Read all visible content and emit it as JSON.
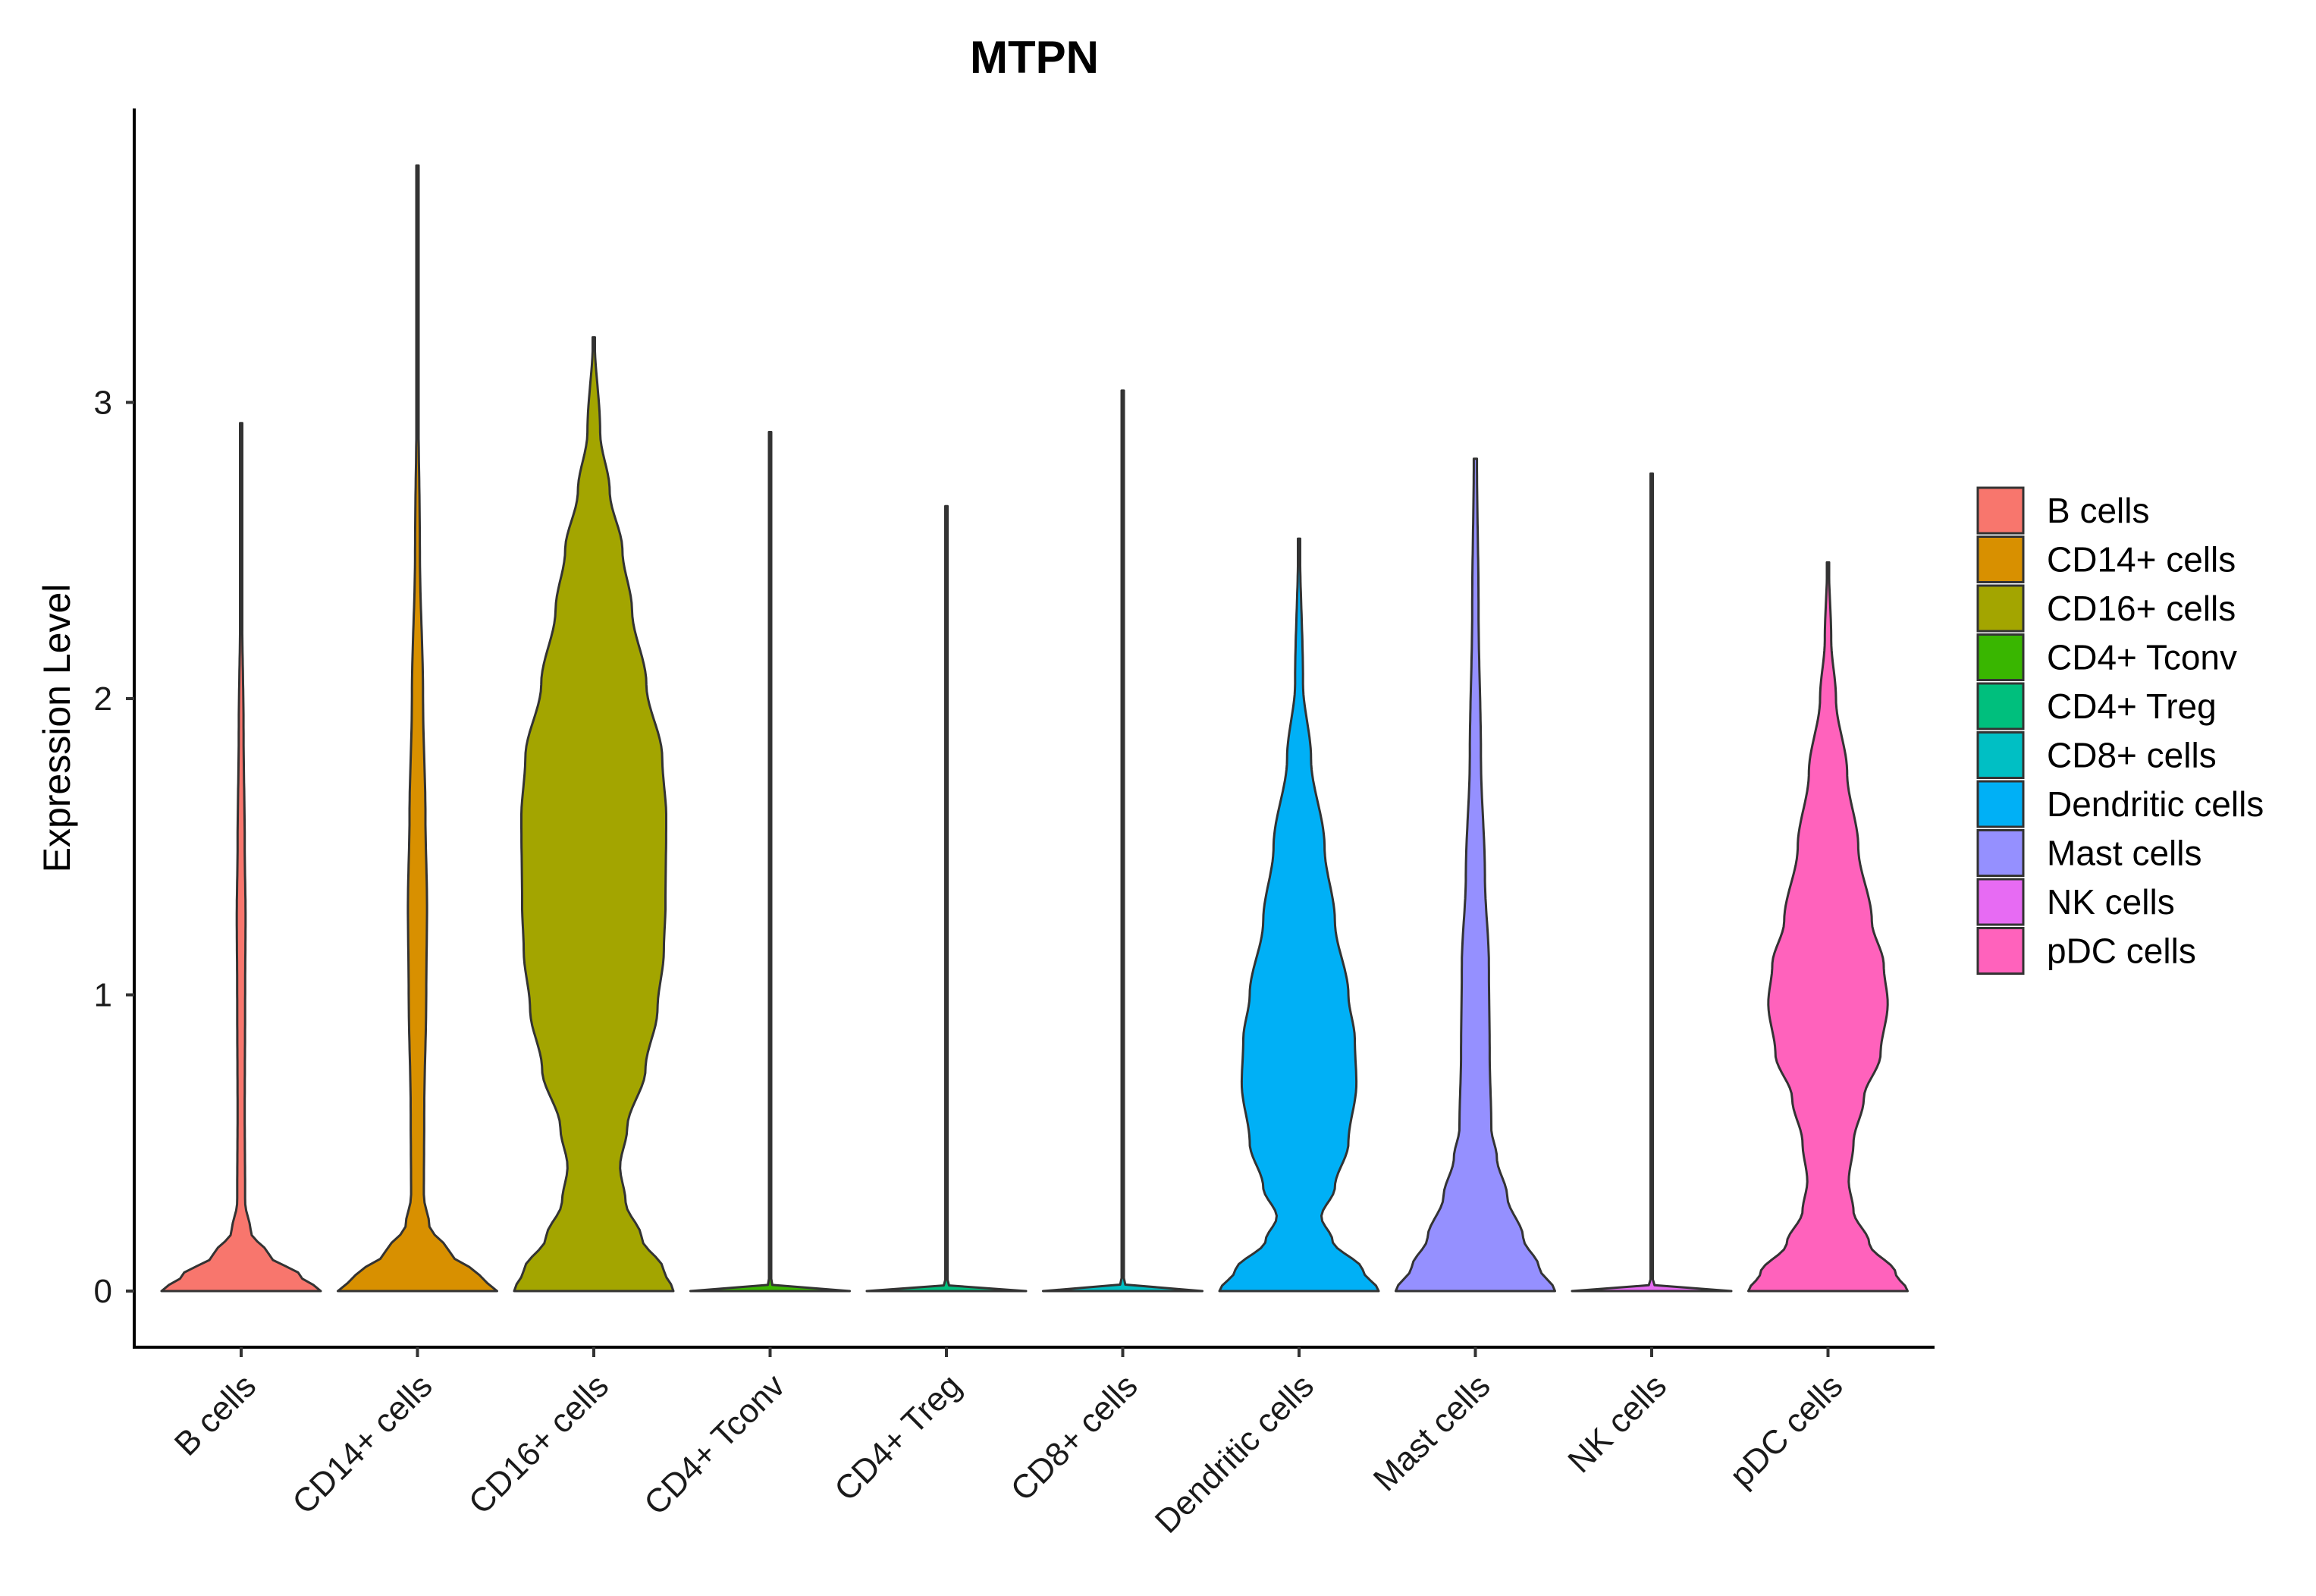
{
  "chart_data": {
    "type": "violin",
    "title": "MTPN",
    "xlabel": "",
    "ylabel": "Expression Level",
    "ylim": [
      -0.19,
      3.99
    ],
    "yticks": [
      "0",
      "1",
      "2",
      "3"
    ],
    "legend_position": "right",
    "categories": [
      "B cells",
      "CD14+ cells",
      "CD16+ cells",
      "CD4+ Tconv",
      "CD4+ Treg",
      "CD8+ cells",
      "Dendritic cells",
      "Mast cells",
      "NK cells",
      "pDC cells"
    ],
    "series": [
      {
        "name": "B cells",
        "color": "#F8766D",
        "max": 2.93,
        "profile": [
          [
            0,
            1.0
          ],
          [
            0.05,
            0.75
          ],
          [
            0.12,
            0.35
          ],
          [
            0.2,
            0.12
          ],
          [
            0.3,
            0.05
          ],
          [
            0.6,
            0.045
          ],
          [
            1.0,
            0.05
          ],
          [
            1.27,
            0.055
          ],
          [
            1.5,
            0.045
          ],
          [
            1.9,
            0.03
          ],
          [
            2.3,
            0.012
          ],
          [
            2.93,
            0.006
          ]
        ]
      },
      {
        "name": "CD14+ cells",
        "color": "#D89000",
        "max": 3.8,
        "profile": [
          [
            0,
            1.0
          ],
          [
            0.05,
            0.78
          ],
          [
            0.13,
            0.4
          ],
          [
            0.22,
            0.15
          ],
          [
            0.32,
            0.08
          ],
          [
            0.6,
            0.085
          ],
          [
            1.0,
            0.11
          ],
          [
            1.3,
            0.12
          ],
          [
            1.6,
            0.1
          ],
          [
            2.0,
            0.07
          ],
          [
            2.5,
            0.03
          ],
          [
            3.0,
            0.012
          ],
          [
            3.8,
            0.006
          ]
        ]
      },
      {
        "name": "CD16+ cells",
        "color": "#A3A500",
        "max": 3.22,
        "profile": [
          [
            0,
            1.0
          ],
          [
            0.07,
            0.88
          ],
          [
            0.18,
            0.6
          ],
          [
            0.3,
            0.4
          ],
          [
            0.42,
            0.33
          ],
          [
            0.55,
            0.42
          ],
          [
            0.75,
            0.65
          ],
          [
            0.95,
            0.8
          ],
          [
            1.15,
            0.88
          ],
          [
            1.3,
            0.9
          ],
          [
            1.6,
            0.91
          ],
          [
            1.8,
            0.86
          ],
          [
            2.05,
            0.66
          ],
          [
            2.3,
            0.48
          ],
          [
            2.5,
            0.36
          ],
          [
            2.7,
            0.2
          ],
          [
            2.9,
            0.08
          ],
          [
            3.22,
            0.01
          ]
        ]
      },
      {
        "name": "CD4+ Tconv",
        "color": "#39B600",
        "max": 2.9,
        "profile": [
          [
            0,
            1.0
          ],
          [
            0.01,
            0.05
          ],
          [
            0.03,
            0.01
          ],
          [
            2.9,
            0.01
          ]
        ]
      },
      {
        "name": "CD4+ Treg",
        "color": "#00BF7D",
        "max": 2.65,
        "profile": [
          [
            0,
            1.0
          ],
          [
            0.01,
            0.05
          ],
          [
            0.03,
            0.01
          ],
          [
            2.65,
            0.01
          ]
        ]
      },
      {
        "name": "CD8+ cells",
        "color": "#00BFC4",
        "max": 3.04,
        "profile": [
          [
            0,
            1.0
          ],
          [
            0.01,
            0.07
          ],
          [
            0.03,
            0.01
          ],
          [
            3.04,
            0.01
          ]
        ]
      },
      {
        "name": "Dendritic cells",
        "color": "#00B0F6",
        "max": 2.54,
        "profile": [
          [
            0,
            1.0
          ],
          [
            0.07,
            0.8
          ],
          [
            0.17,
            0.42
          ],
          [
            0.25,
            0.28
          ],
          [
            0.35,
            0.45
          ],
          [
            0.5,
            0.62
          ],
          [
            0.7,
            0.72
          ],
          [
            0.85,
            0.7
          ],
          [
            1.0,
            0.62
          ],
          [
            1.25,
            0.45
          ],
          [
            1.5,
            0.32
          ],
          [
            1.8,
            0.15
          ],
          [
            2.05,
            0.05
          ],
          [
            2.54,
            0.01
          ]
        ]
      },
      {
        "name": "Mast cells",
        "color": "#9590FF",
        "max": 2.81,
        "profile": [
          [
            0,
            1.0
          ],
          [
            0.08,
            0.8
          ],
          [
            0.18,
            0.6
          ],
          [
            0.32,
            0.4
          ],
          [
            0.45,
            0.27
          ],
          [
            0.55,
            0.2
          ],
          [
            0.8,
            0.18
          ],
          [
            1.1,
            0.17
          ],
          [
            1.4,
            0.12
          ],
          [
            1.8,
            0.07
          ],
          [
            2.3,
            0.04
          ],
          [
            2.81,
            0.02
          ]
        ]
      },
      {
        "name": "NK cells",
        "color": "#E76BF3",
        "max": 2.76,
        "profile": [
          [
            0,
            1.0
          ],
          [
            0.01,
            0.06
          ],
          [
            0.03,
            0.01
          ],
          [
            2.76,
            0.01
          ]
        ]
      },
      {
        "name": "pDC cells",
        "color": "#FF62BC",
        "max": 2.46,
        "profile": [
          [
            0,
            1.0
          ],
          [
            0.06,
            0.85
          ],
          [
            0.16,
            0.52
          ],
          [
            0.27,
            0.32
          ],
          [
            0.37,
            0.26
          ],
          [
            0.5,
            0.32
          ],
          [
            0.65,
            0.45
          ],
          [
            0.8,
            0.66
          ],
          [
            0.97,
            0.75
          ],
          [
            1.1,
            0.7
          ],
          [
            1.25,
            0.55
          ],
          [
            1.5,
            0.38
          ],
          [
            1.75,
            0.24
          ],
          [
            2.0,
            0.1
          ],
          [
            2.2,
            0.04
          ],
          [
            2.46,
            0.01
          ]
        ]
      }
    ]
  }
}
